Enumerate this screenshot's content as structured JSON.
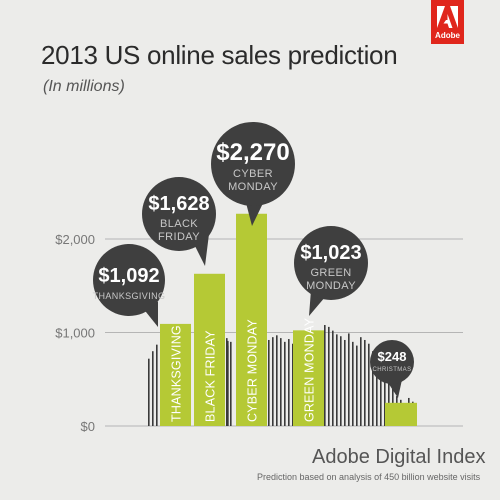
{
  "brand": {
    "logo_text": "Adobe",
    "logo_color": "#e0261c"
  },
  "title": "2013 US online sales prediction",
  "subtitle": "(In millions)",
  "footer": {
    "title": "Adobe Digital Index",
    "note": "Prediction based on analysis of 450 billion website visits"
  },
  "colors": {
    "bar": "#b5c935",
    "bubble": "#3f3f3f",
    "bg_bar": "#3a3a3a",
    "grid": "#b5b5b5"
  },
  "chart_data": {
    "type": "bar",
    "ylim": [
      0,
      2600
    ],
    "yticks": [
      {
        "value": 0,
        "label": "$0"
      },
      {
        "value": 1000,
        "label": "$1,000"
      },
      {
        "value": 2000,
        "label": "$2,000"
      }
    ],
    "series": [
      {
        "values": [
          1092,
          1628,
          2270,
          1023,
          248
        ],
        "categories": [
          "THANKSGIVING",
          "BLACK FRIDAY",
          "CYBER MONDAY",
          "GREEN MONDAY",
          "CHRISTMAS"
        ],
        "value_labels": [
          "$1,092",
          "$1,628",
          "$2,270",
          "$1,023",
          "$248"
        ],
        "bubble_labels": [
          [
            "THANKSGIVING"
          ],
          [
            "BLACK",
            "FRIDAY"
          ],
          [
            "CYBER",
            "MONDAY"
          ],
          [
            "GREEN",
            "MONDAY"
          ],
          [
            "CHRISTMAS"
          ]
        ],
        "show_category_on_bar": [
          true,
          true,
          true,
          true,
          false
        ]
      }
    ],
    "background_daily_values": [
      720,
      800,
      870,
      920,
      1000,
      880,
      940,
      900,
      860,
      910,
      920,
      950,
      970,
      940,
      900,
      930,
      880,
      1080,
      1060,
      1020,
      980,
      960,
      920,
      990,
      900,
      860,
      950,
      920,
      880,
      800,
      720,
      700,
      650,
      600,
      420,
      320,
      280,
      240,
      300,
      260,
      720
    ]
  }
}
